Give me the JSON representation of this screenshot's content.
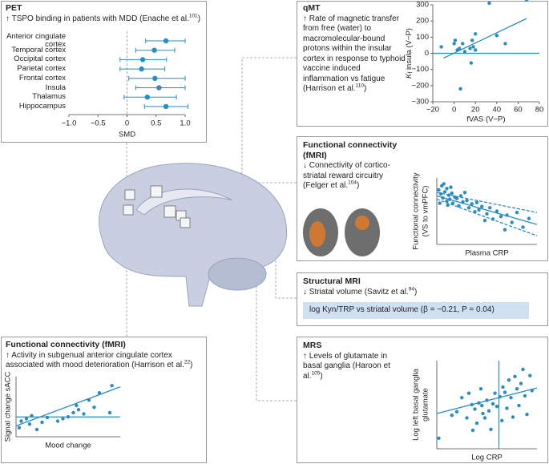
{
  "chart_data": [
    {
      "type": "forest",
      "title": "PET",
      "text": "↑ TSPO binding in patients with MDD (Enache et al.",
      "ref": "101",
      "text_end": ")",
      "categories": [
        "Anterior cingulate cortex",
        "Temporal cortex",
        "Occipital cortex",
        "Parietal cortex",
        "Frontal cortex",
        "Insula",
        "Thalamus",
        "Hippocampus"
      ],
      "values": [
        0.67,
        0.47,
        0.27,
        0.25,
        0.48,
        0.55,
        0.35,
        0.67
      ],
      "lower": [
        0.32,
        0.15,
        -0.12,
        -0.12,
        0.03,
        0.15,
        -0.05,
        0.3
      ],
      "upper": [
        1.0,
        0.82,
        0.68,
        0.65,
        1.0,
        1.0,
        0.85,
        1.05
      ],
      "xlim": [
        -1,
        1
      ],
      "xticks": [
        {
          "value": -1,
          "label": "−1.0"
        },
        {
          "value": -0.5,
          "label": "−0.5"
        },
        0,
        0.5,
        {
          "value": 1,
          "label": "1.0"
        }
      ],
      "xlabel": "SMD",
      "color": "#2b8cc4"
    },
    {
      "type": "scatter",
      "title": "qMT",
      "text": "↑ Rate of magnetic transfer from free (water) to macromolecular-bound protons within the insular cortex in response to typhoid vaccine induced inflammation vs fatigue (Harrison et al.",
      "ref": "110",
      "text_end": ")",
      "x": [
        -12,
        0,
        1,
        3,
        5,
        6,
        8,
        10,
        15,
        16,
        17,
        18,
        20,
        20,
        33,
        40,
        48,
        68
      ],
      "y": [
        40,
        60,
        80,
        20,
        30,
        -220,
        60,
        10,
        30,
        -60,
        80,
        40,
        120,
        20,
        310,
        110,
        60,
        330
      ],
      "fit_x": [
        -10,
        68
      ],
      "fit_y": [
        -30,
        215
      ],
      "hline": 0,
      "xlim": [
        -20,
        80
      ],
      "ylim": [
        -300,
        300
      ],
      "xticks": [
        {
          "value": -20,
          "label": "−20"
        },
        0,
        20,
        40,
        60,
        80
      ],
      "yticks": [
        {
          "value": -300,
          "label": "−300"
        },
        {
          "value": -200,
          "label": "−200"
        },
        {
          "value": -100,
          "label": "−100"
        },
        0,
        100,
        200,
        300
      ],
      "xlabel": "fVAS (V−P)",
      "ylabel": "K",
      "ylabel_sub": "f",
      "ylabel_rest": " insula (V−P)",
      "color": "#2b8cc4"
    },
    {
      "type": "scatter",
      "title": "Functional connectivity (fMRI)",
      "text": "↓ Connectivity of cortico-striatal reward circuitry (Felger et al.",
      "ref": "104",
      "text_end": ")",
      "x": [
        0.2,
        0.4,
        0.5,
        0.6,
        0.8,
        1,
        1,
        1.2,
        1.3,
        1.5,
        1.6,
        1.8,
        2,
        2.2,
        2.4,
        2.6,
        3,
        3.2,
        3.5,
        3.8,
        4,
        4.2,
        4.5,
        5,
        5.3,
        5.6,
        6,
        6.4,
        7,
        7.5,
        8,
        8.6,
        9.2,
        0.3,
        0.7,
        1.1,
        1.4,
        2.8,
        4.8,
        6.8
      ],
      "y": [
        8.2,
        7.6,
        8.8,
        7,
        7.9,
        6.5,
        8.4,
        7.4,
        6.8,
        7.7,
        6.2,
        7.1,
        6.9,
        5.8,
        7.3,
        6.4,
        6.6,
        5.5,
        6.1,
        4.9,
        6.3,
        5.2,
        5.7,
        4.6,
        5.5,
        3.8,
        5,
        4.2,
        4.4,
        3.3,
        4.8,
        2.6,
        3.9,
        6.2,
        9.1,
        5.9,
        8.6,
        7.8,
        3.6,
        2.2
      ],
      "fit_x": [
        0,
        10
      ],
      "fit_y": [
        7.3,
        3.0
      ],
      "ci_upper_y": [
        7.8,
        4.8
      ],
      "ci_lower_y": [
        6.8,
        1.3
      ],
      "xlim": [
        0,
        10
      ],
      "ylim": [
        0,
        10
      ],
      "xlabel": "Plasma CRP",
      "ylabel": [
        "Functional connectivity",
        "(VS to vmPFC)"
      ],
      "color": "#2b8cc4"
    },
    {
      "type": "note",
      "title": "Structural MRI",
      "text": "↓ Striatal volume (Savitz et al.",
      "ref": "94",
      "text_end": ")",
      "result": "log Kyn/TRP vs striatal volume (β = −0.21, P = 0.04)"
    },
    {
      "type": "scatter",
      "title": "MRS",
      "text": "↑ Levels of glutamate in basal ganglia (Haroon et al.",
      "ref": "105",
      "text_end": ")",
      "x": [
        0.2,
        1.5,
        2,
        2.5,
        3,
        3.2,
        3.5,
        3.8,
        4,
        4.2,
        4.4,
        4.6,
        4.8,
        5,
        5.2,
        5.4,
        5.6,
        5.8,
        6,
        6.3,
        6.5,
        6.8,
        7,
        7.2,
        7.4,
        7.6,
        7.8,
        8,
        8.2,
        8.4,
        8.6,
        8.8,
        9,
        9.3,
        9.5,
        3.6,
        4.5,
        6.6
      ],
      "y": [
        1.2,
        3.8,
        4.2,
        5.8,
        3.5,
        6.3,
        5,
        4.5,
        2.9,
        5.2,
        6.8,
        4,
        3.5,
        5.5,
        4.3,
        2.2,
        5.1,
        6.3,
        4.8,
        5.9,
        3.2,
        6.4,
        4.6,
        7.8,
        5.8,
        3.6,
        8.2,
        6.8,
        4.9,
        7.4,
        9,
        6,
        3.9,
        8.3,
        6.6,
        2.1,
        4.9,
        7
      ],
      "fit_x": [
        0,
        10
      ],
      "fit_y": [
        4,
        6.9
      ],
      "vline": 6.2,
      "xlim": [
        0,
        10
      ],
      "ylim": [
        0,
        10
      ],
      "xlabel": "Log CRP",
      "ylabel": [
        "Log left basal ganglia",
        "glutamate"
      ],
      "color": "#2b8cc4"
    },
    {
      "type": "scatter",
      "title": "Functional connectivity (fMRI)",
      "text": "↑ Activity in subgenual anterior cingulate cortex associated with mood deterioration (Harrison et al.",
      "ref": "22",
      "text_end": ")",
      "x": [
        0.3,
        0.5,
        1,
        1.3,
        1.5,
        2,
        2.5,
        3,
        4,
        4.5,
        5,
        5.5,
        5.8,
        6,
        6.5,
        7,
        7.5,
        8,
        9,
        9.2
      ],
      "y": [
        1.5,
        2.6,
        3,
        2.1,
        3.5,
        1.2,
        2.4,
        3.2,
        2.6,
        3,
        3.3,
        4,
        5.2,
        4.5,
        3.8,
        6.1,
        4.9,
        7.3,
        4,
        8.5
      ],
      "fit_x": [
        0,
        10
      ],
      "fit_y": [
        1.8,
        8.3
      ],
      "hline": 3.3,
      "xlim": [
        0,
        10
      ],
      "ylim": [
        0,
        10
      ],
      "xlabel": "Mood change",
      "ylabel": "Signal change sACC",
      "color": "#2b8cc4"
    }
  ]
}
